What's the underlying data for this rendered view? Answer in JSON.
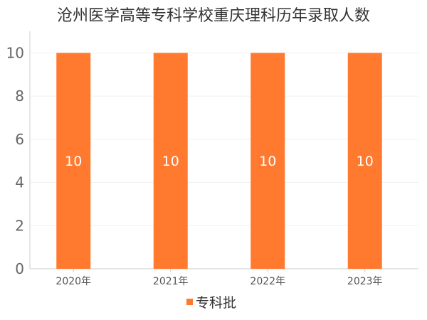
{
  "chart_data": {
    "type": "bar",
    "title": "沧州医学高等专科学校重庆理科历年录取人数",
    "categories": [
      "2020年",
      "2021年",
      "2022年",
      "2023年"
    ],
    "series": [
      {
        "name": "专科批",
        "values": [
          10,
          10,
          10,
          10
        ],
        "color": "#FF7A2F"
      }
    ],
    "yticks": [
      0,
      2,
      4,
      6,
      8,
      10
    ],
    "ylim": [
      0,
      11
    ],
    "grid": true,
    "legend": "bottom"
  }
}
